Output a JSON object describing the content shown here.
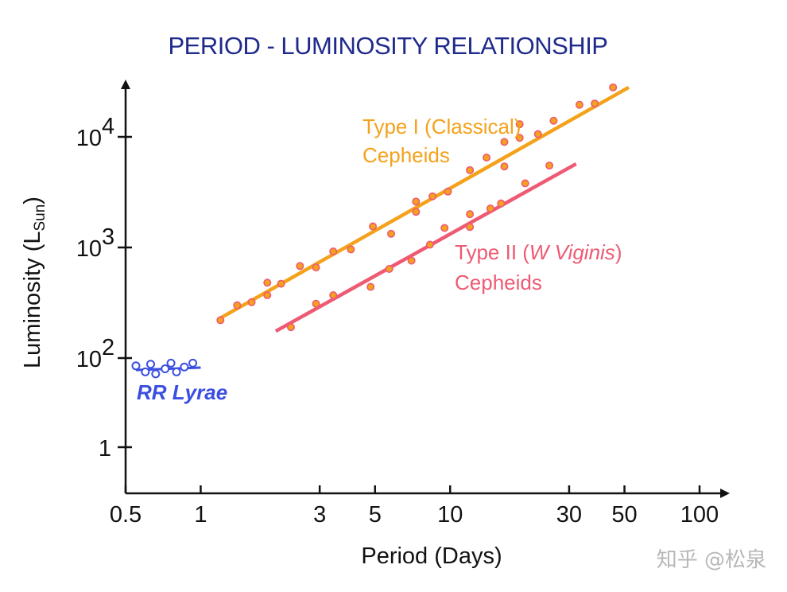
{
  "watermark": "知乎 @松泉",
  "colors": {
    "title": "#1f2a8c",
    "axis": "#111111",
    "rr_lyrae": "#3b4fe0",
    "type1": "#f4a21b",
    "type2": "#ee5a73",
    "marker_fill": "#f4a21b"
  },
  "chart_data": {
    "type": "scatter",
    "title": "PERIOD - LUMINOSITY RELATIONSHIP",
    "xlabel": "Period (Days)",
    "ylabel": "Luminosity (L",
    "ylabel_sub": "Sun",
    "ylabel_close": ")",
    "x_scale": "log",
    "y_scale": "log",
    "xlim": [
      0.5,
      100
    ],
    "x_ticks": [
      {
        "value": 0.5,
        "label": "0.5"
      },
      {
        "value": 1,
        "label": "1"
      },
      {
        "value": 3,
        "label": "3"
      },
      {
        "value": 5,
        "label": "5"
      },
      {
        "value": 10,
        "label": "10"
      },
      {
        "value": 30,
        "label": "30"
      },
      {
        "value": 50,
        "label": "50"
      },
      {
        "value": 100,
        "label": "100"
      }
    ],
    "y_ticks": [
      {
        "value": 1,
        "label": "1",
        "exp": ""
      },
      {
        "value": 100,
        "label": "10",
        "exp": "2"
      },
      {
        "value": 1000,
        "label": "10",
        "exp": "3"
      },
      {
        "value": 10000,
        "label": "10",
        "exp": "4"
      }
    ],
    "series": [
      {
        "name": "RR Lyrae",
        "style": "open",
        "color_key": "rr_lyrae",
        "fit": [
          [
            0.55,
            78
          ],
          [
            1.0,
            82
          ]
        ],
        "points": [
          [
            0.55,
            85
          ],
          [
            0.6,
            75
          ],
          [
            0.63,
            88
          ],
          [
            0.66,
            72
          ],
          [
            0.72,
            80
          ],
          [
            0.76,
            90
          ],
          [
            0.8,
            75
          ],
          [
            0.86,
            83
          ],
          [
            0.93,
            90
          ]
        ]
      },
      {
        "name": "Type I (Classical)",
        "name_line2": "Cepheids",
        "style": "filled",
        "color_key": "type1",
        "fit": [
          [
            1.2,
            230
          ],
          [
            52,
            28000
          ]
        ],
        "points": [
          [
            1.2,
            220
          ],
          [
            1.4,
            300
          ],
          [
            1.6,
            320
          ],
          [
            1.85,
            480
          ],
          [
            1.85,
            370
          ],
          [
            2.1,
            470
          ],
          [
            2.5,
            680
          ],
          [
            2.9,
            660
          ],
          [
            3.4,
            920
          ],
          [
            4.0,
            960
          ],
          [
            4.9,
            1550
          ],
          [
            5.8,
            1330
          ],
          [
            7.3,
            2600
          ],
          [
            7.3,
            2100
          ],
          [
            8.5,
            2900
          ],
          [
            9.8,
            3200
          ],
          [
            12.0,
            5000
          ],
          [
            14.0,
            6500
          ],
          [
            16.5,
            9000
          ],
          [
            16.5,
            5400
          ],
          [
            19.0,
            13000
          ],
          [
            19.0,
            9800
          ],
          [
            22.5,
            10600
          ],
          [
            26.0,
            14000
          ],
          [
            33.0,
            19500
          ],
          [
            38.0,
            20000
          ],
          [
            45.0,
            28000
          ]
        ]
      },
      {
        "name": "Type II (",
        "name_italic": "W Viginis",
        "name_close": ")",
        "name_line2": "Cepheids",
        "style": "filled",
        "color_key": "type2",
        "fit": [
          [
            2.0,
            175
          ],
          [
            32,
            5700
          ]
        ],
        "points": [
          [
            2.3,
            190
          ],
          [
            2.9,
            310
          ],
          [
            3.4,
            370
          ],
          [
            4.8,
            440
          ],
          [
            5.7,
            640
          ],
          [
            7.0,
            760
          ],
          [
            8.3,
            1060
          ],
          [
            9.5,
            1500
          ],
          [
            12.0,
            1530
          ],
          [
            12.0,
            2000
          ],
          [
            14.5,
            2250
          ],
          [
            16.0,
            2500
          ],
          [
            20.0,
            3800
          ],
          [
            25.0,
            5500
          ]
        ]
      }
    ]
  }
}
